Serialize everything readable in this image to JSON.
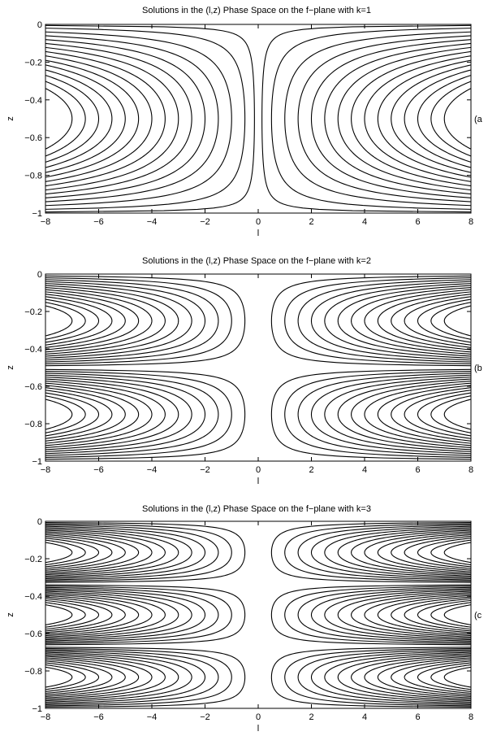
{
  "chart_data": [
    {
      "type": "line",
      "panel_label": "(a",
      "title": "Solutions in the (l,z) Phase Space on the f−plane with k=1",
      "xlabel": "l",
      "ylabel": "z",
      "xlim": [
        -8,
        8
      ],
      "ylim": [
        -1,
        0
      ],
      "xticks": [
        -8,
        -6,
        -4,
        -2,
        0,
        2,
        4,
        6,
        8
      ],
      "xtick_labels": [
        "−8",
        "−6",
        "−4",
        "−2",
        "0",
        "2",
        "4",
        "6",
        "8"
      ],
      "yticks": [
        -1,
        -0.8,
        -0.6,
        -0.4,
        -0.2,
        0
      ],
      "ytick_labels": [
        "−1",
        "−0.8",
        "−0.6",
        "−0.4",
        "−0.2",
        "0"
      ],
      "grid": false,
      "k": 1,
      "field_function": "l^2 * sin^2(k*pi*z)",
      "contour_levels": [
        0.02,
        0.25,
        1,
        2.25,
        4,
        6.25,
        9,
        12.25,
        16,
        20.25,
        25,
        30.25,
        36,
        42.25,
        49
      ]
    },
    {
      "type": "line",
      "panel_label": "(b",
      "title": "Solutions in the (l,z) Phase Space on the f−plane with k=2",
      "xlabel": "l",
      "ylabel": "z",
      "xlim": [
        -8,
        8
      ],
      "ylim": [
        -1,
        0
      ],
      "xticks": [
        -8,
        -6,
        -4,
        -2,
        0,
        2,
        4,
        6,
        8
      ],
      "xtick_labels": [
        "−8",
        "−6",
        "−4",
        "−2",
        "0",
        "2",
        "4",
        "6",
        "8"
      ],
      "yticks": [
        -1,
        -0.8,
        -0.6,
        -0.4,
        -0.2,
        0
      ],
      "ytick_labels": [
        "−1",
        "−0.8",
        "−0.6",
        "−0.4",
        "−0.2",
        "0"
      ],
      "grid": false,
      "k": 2,
      "field_function": "l^2 * sin^2(k*pi*z)",
      "contour_levels": [
        0.25,
        1,
        2.25,
        4,
        6.25,
        9,
        12.25,
        16,
        20.25,
        25,
        30.25,
        36,
        42.25,
        49
      ]
    },
    {
      "type": "line",
      "panel_label": "(c",
      "title": "Solutions in the (l,z) Phase Space on the f−plane with k=3",
      "xlabel": "l",
      "ylabel": "z",
      "xlim": [
        -8,
        8
      ],
      "ylim": [
        -1,
        0
      ],
      "xticks": [
        -8,
        -6,
        -4,
        -2,
        0,
        2,
        4,
        6,
        8
      ],
      "xtick_labels": [
        "−8",
        "−6",
        "−4",
        "−2",
        "0",
        "2",
        "4",
        "6",
        "8"
      ],
      "yticks": [
        -1,
        -0.8,
        -0.6,
        -0.4,
        -0.2,
        0
      ],
      "ytick_labels": [
        "−1",
        "−0.8",
        "−0.6",
        "−0.4",
        "−0.2",
        "0"
      ],
      "grid": false,
      "k": 3,
      "field_function": "l^2 * sin^2(k*pi*z)",
      "contour_levels": [
        0.25,
        1,
        2.25,
        4,
        6.25,
        9,
        12.25,
        16,
        20.25,
        25,
        30.25,
        36,
        42.25,
        49
      ]
    }
  ],
  "colors": {
    "line": "#000000",
    "background": "#ffffff"
  }
}
